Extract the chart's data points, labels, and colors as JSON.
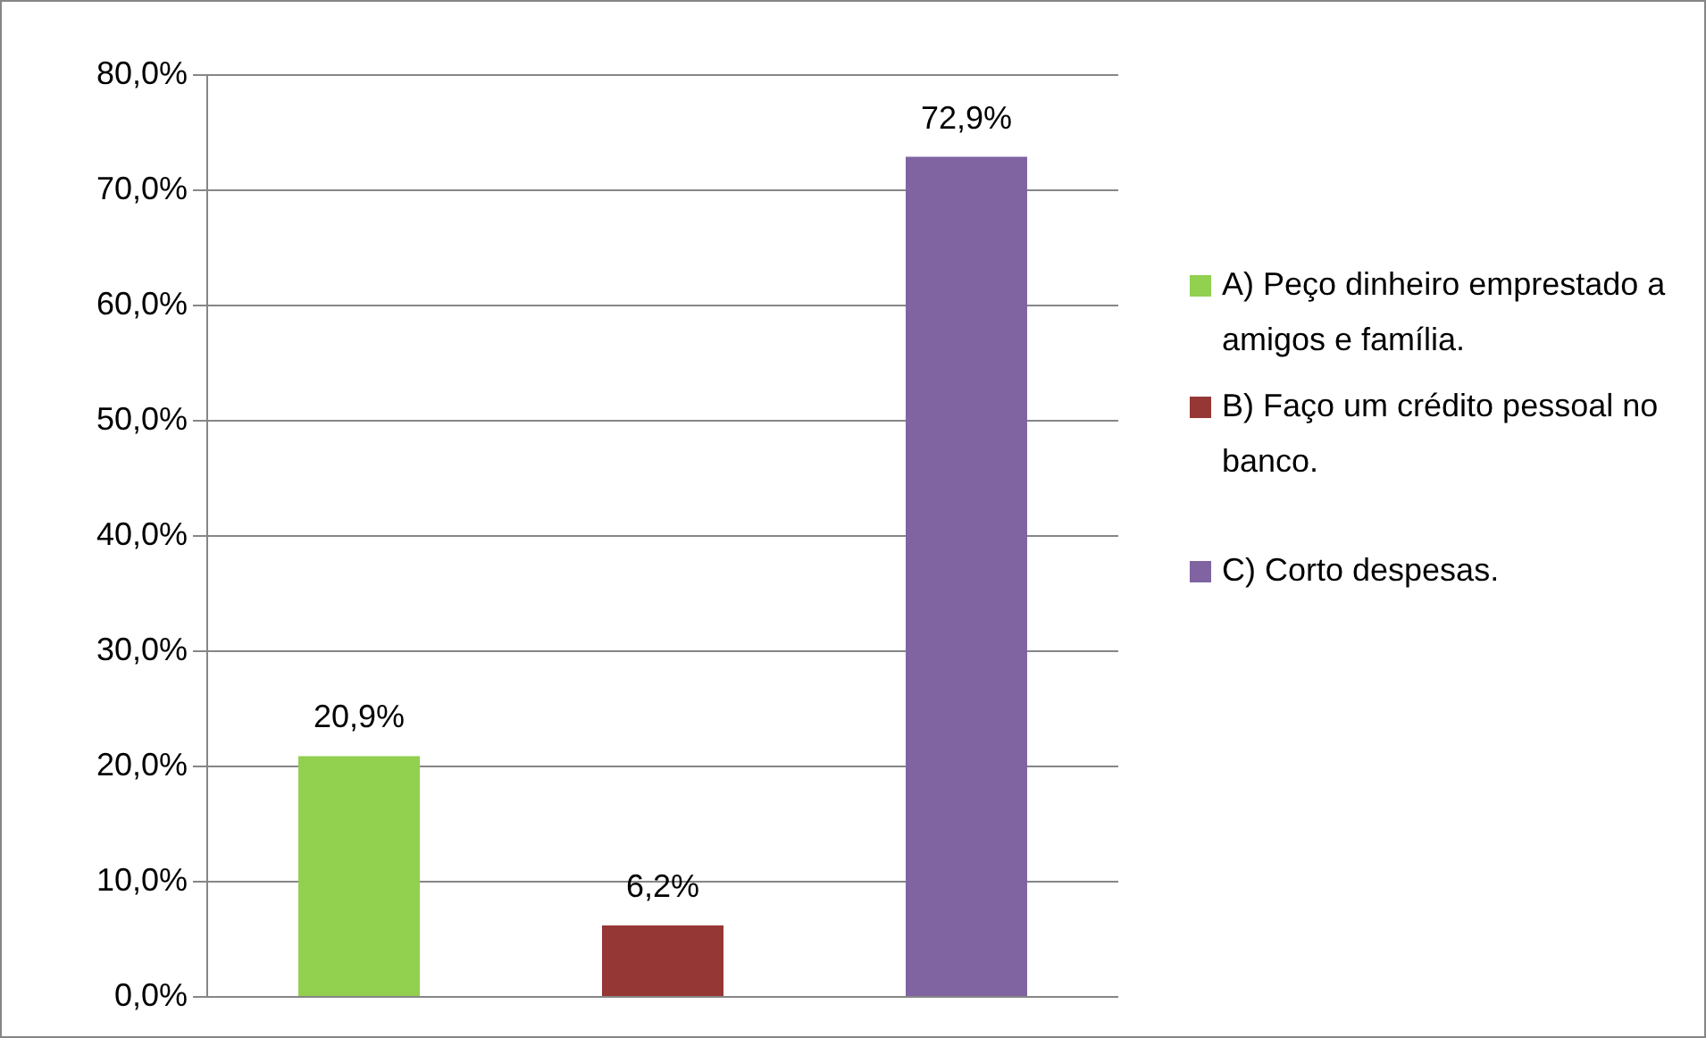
{
  "chart_data": {
    "type": "bar",
    "categories": [
      null
    ],
    "series": [
      {
        "name": "A) Peço dinheiro emprestado a amigos e família.",
        "color": "#92d050",
        "values": [
          20.9
        ],
        "value_labels": [
          "20,9%"
        ]
      },
      {
        "name": "B) Faço um crédito pessoal no banco.",
        "color": "#953735",
        "values": [
          6.2
        ],
        "value_labels": [
          "6,2%"
        ]
      },
      {
        "name": "C) Corto despesas.",
        "color": "#8064a2",
        "values": [
          72.9
        ],
        "value_labels": [
          "72,9%"
        ]
      }
    ],
    "ylim": [
      0,
      80
    ],
    "yticks": [
      {
        "value": 0,
        "label": "0,0%"
      },
      {
        "value": 10,
        "label": "10,0%"
      },
      {
        "value": 20,
        "label": "20,0%"
      },
      {
        "value": 30,
        "label": "30,0%"
      },
      {
        "value": 40,
        "label": "40,0%"
      },
      {
        "value": 50,
        "label": "50,0%"
      },
      {
        "value": 60,
        "label": "60,0%"
      },
      {
        "value": 70,
        "label": "70,0%"
      },
      {
        "value": 80,
        "label": "80,0%"
      }
    ],
    "grid": "y",
    "legend": "right"
  }
}
